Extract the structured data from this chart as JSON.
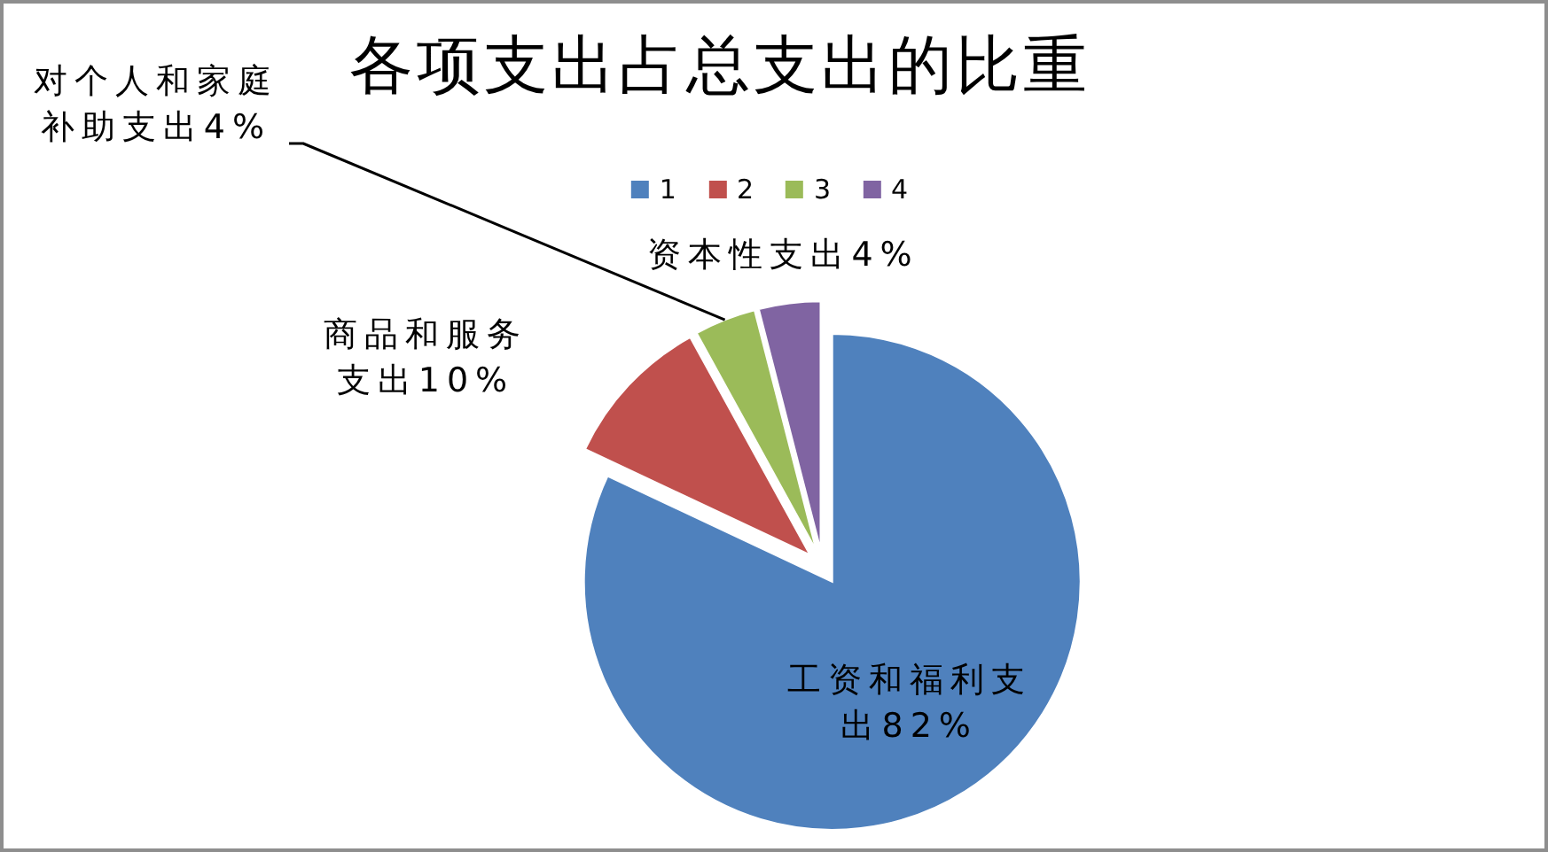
{
  "chart_data": {
    "type": "pie",
    "title": "各项支出占总支出的比重",
    "categories": [
      "1",
      "2",
      "3",
      "4"
    ],
    "values": [
      82,
      10,
      4,
      4
    ],
    "colors": [
      "#4f81bd",
      "#c0504d",
      "#9bbb59",
      "#8064a2"
    ],
    "value_labels": [
      "工资和福利支出82%",
      "商品和服务支出10%",
      "对个人和家庭补助支出4%",
      "资本性支出4%"
    ],
    "legend": "top"
  }
}
